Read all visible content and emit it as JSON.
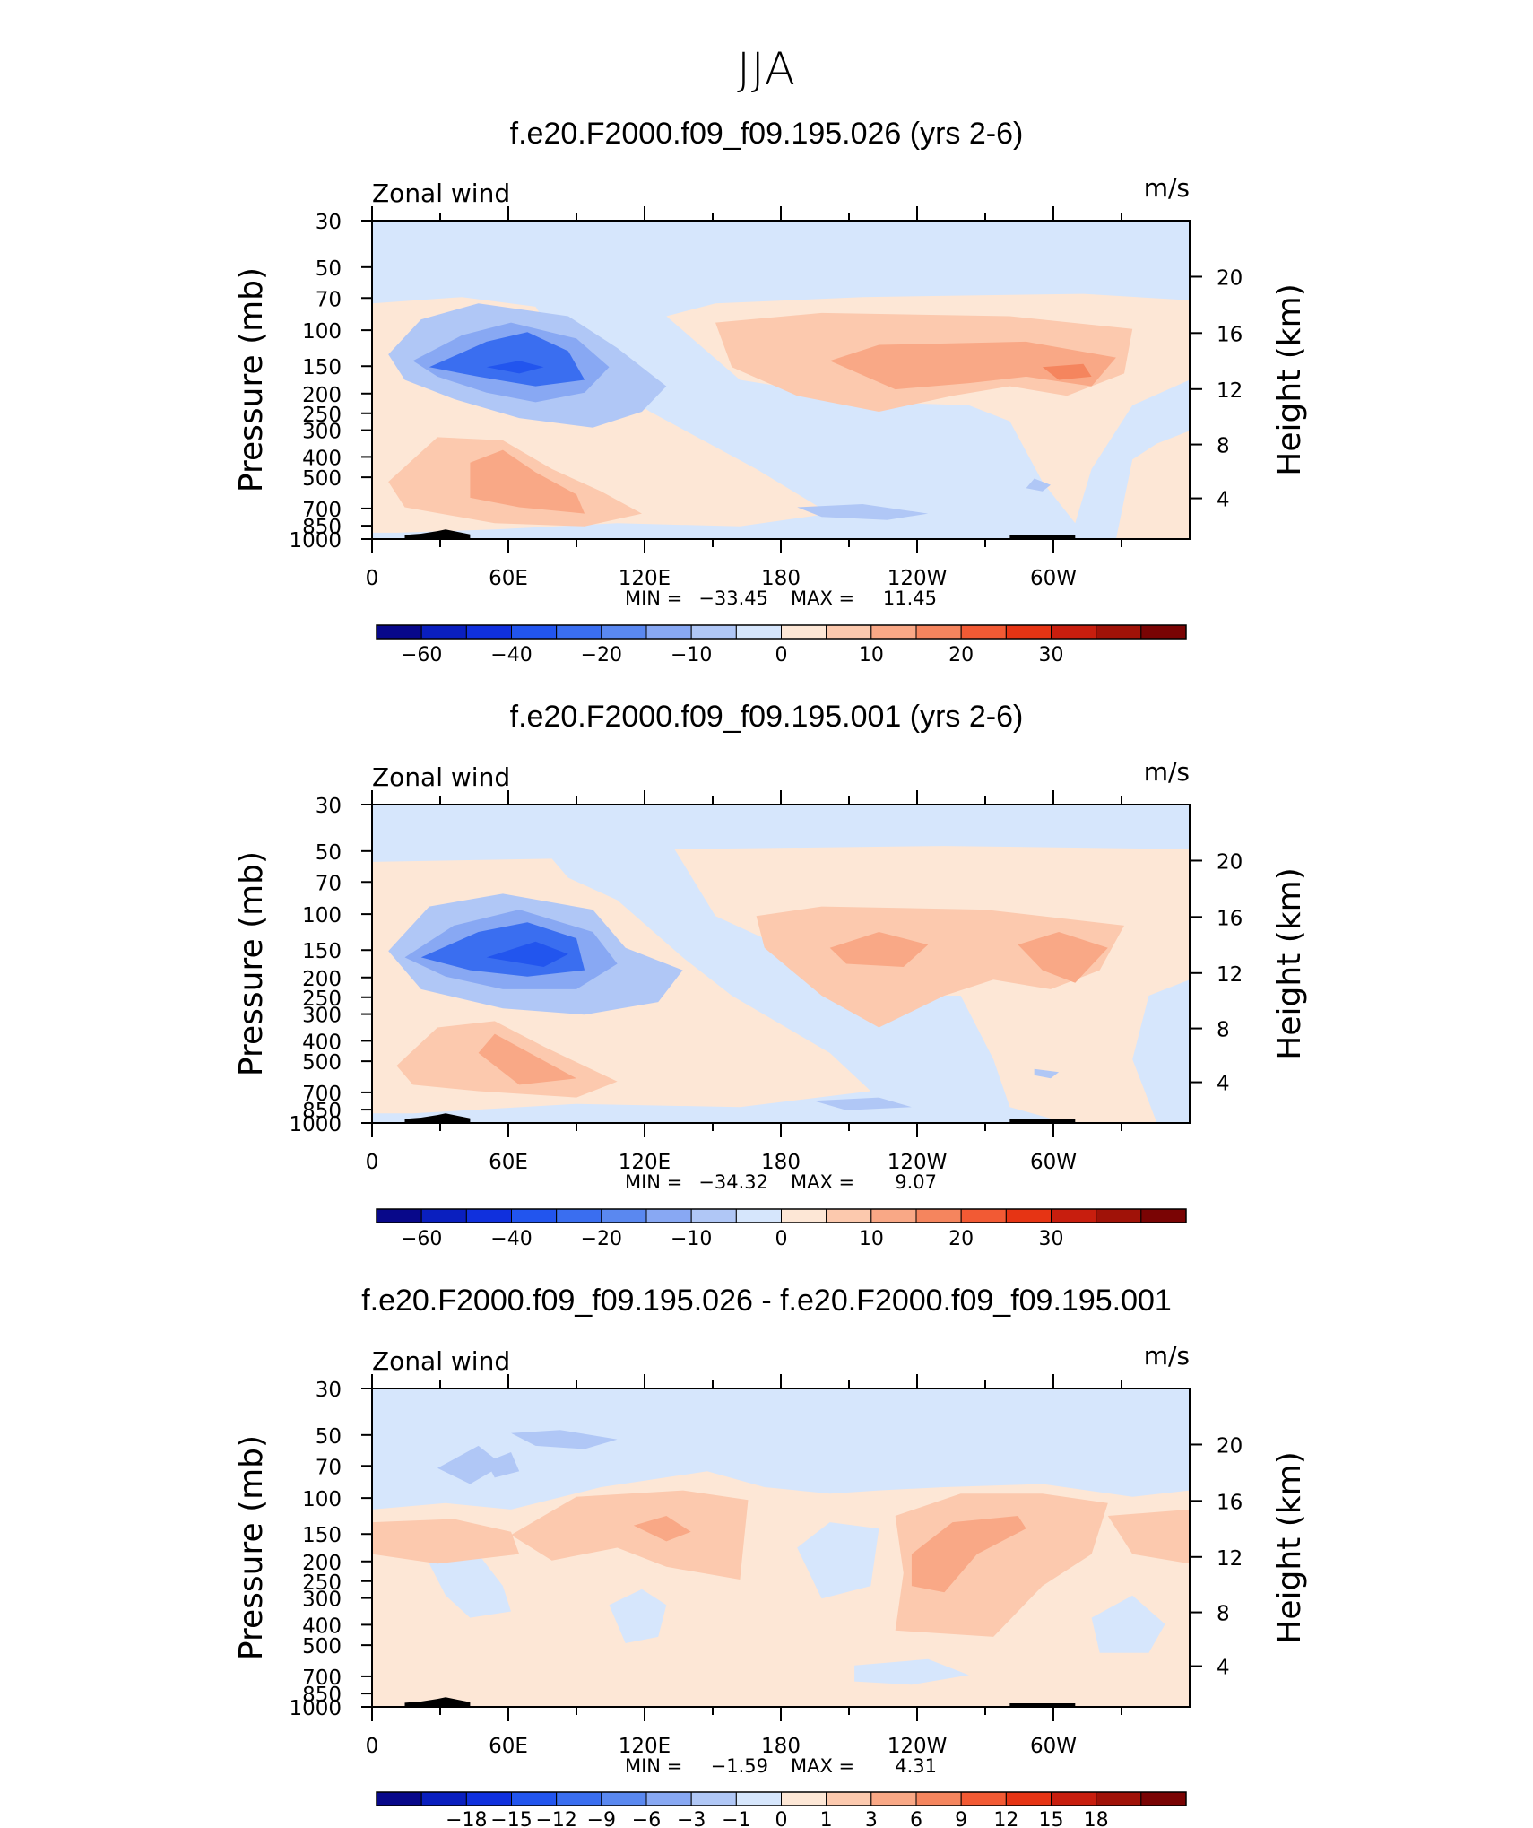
{
  "figure_title": "JJA",
  "contour_colors": [
    "#08088a",
    "#0a1fbf",
    "#1030dd",
    "#2255ee",
    "#3a6ef0",
    "#5a88f0",
    "#88a8f3",
    "#b0c7f6",
    "#d6e6fc",
    "#fde7d6",
    "#fcc9ae",
    "#f9a886",
    "#f5855e",
    "#f25a34",
    "#e63414",
    "#c81e0e",
    "#a01208",
    "#7a0404"
  ],
  "chart_data": [
    {
      "type": "heatmap",
      "title": "f.e20.F2000.f09_f09.195.026 (yrs 2-6)",
      "left_label": "Zonal wind",
      "right_label": "m/s",
      "ylabel": "Pressure (mb)",
      "ylabel_right": "Height (km)",
      "x_ticks": [
        "0",
        "60E",
        "120E",
        "180",
        "120W",
        "60W"
      ],
      "y_ticks": [
        "30",
        "50",
        "70",
        "100",
        "150",
        "200",
        "250",
        "300",
        "400",
        "500",
        "700",
        "850",
        "1000"
      ],
      "height_ticks": [
        "20",
        "16",
        "12",
        "8",
        "4"
      ],
      "min_label": "MIN =",
      "min_value": "−33.45",
      "max_label": "MAX =",
      "max_value": "11.45",
      "colorbar_labels": [
        "−60",
        "−40",
        "−20",
        "−10",
        "0",
        "10",
        "20",
        "30"
      ]
    },
    {
      "type": "heatmap",
      "title": "f.e20.F2000.f09_f09.195.001 (yrs 2-6)",
      "left_label": "Zonal wind",
      "right_label": "m/s",
      "ylabel": "Pressure (mb)",
      "ylabel_right": "Height (km)",
      "x_ticks": [
        "0",
        "60E",
        "120E",
        "180",
        "120W",
        "60W"
      ],
      "y_ticks": [
        "30",
        "50",
        "70",
        "100",
        "150",
        "200",
        "250",
        "300",
        "400",
        "500",
        "700",
        "850",
        "1000"
      ],
      "height_ticks": [
        "20",
        "16",
        "12",
        "8",
        "4"
      ],
      "min_label": "MIN =",
      "min_value": "−34.32",
      "max_label": "MAX =",
      "max_value": "9.07",
      "colorbar_labels": [
        "−60",
        "−40",
        "−20",
        "−10",
        "0",
        "10",
        "20",
        "30"
      ]
    },
    {
      "type": "heatmap",
      "title": "f.e20.F2000.f09_f09.195.026 - f.e20.F2000.f09_f09.195.001",
      "left_label": "Zonal wind",
      "right_label": "m/s",
      "ylabel": "Pressure (mb)",
      "ylabel_right": "Height (km)",
      "x_ticks": [
        "0",
        "60E",
        "120E",
        "180",
        "120W",
        "60W"
      ],
      "y_ticks": [
        "30",
        "50",
        "70",
        "100",
        "150",
        "200",
        "250",
        "300",
        "400",
        "500",
        "700",
        "850",
        "1000"
      ],
      "height_ticks": [
        "20",
        "16",
        "12",
        "8",
        "4"
      ],
      "min_label": "MIN =",
      "min_value": "−1.59",
      "max_label": "MAX =",
      "max_value": "4.31",
      "colorbar_labels": [
        "−18",
        "−15",
        "−12",
        "−9",
        "−6",
        "−3",
        "−1",
        "0",
        "1",
        "3",
        "6",
        "9",
        "12",
        "15",
        "18"
      ]
    }
  ]
}
